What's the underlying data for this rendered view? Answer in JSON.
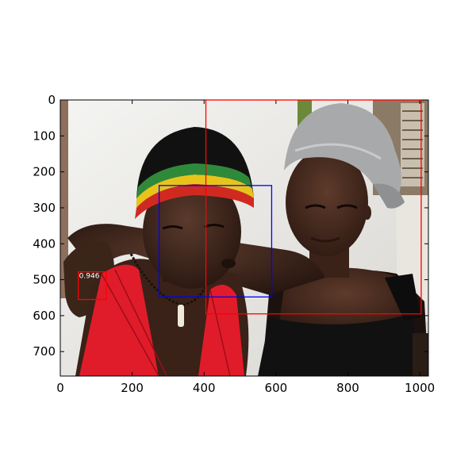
{
  "figure": {
    "image_description_icon": "photo-of-two-people",
    "x_ticks": [
      0,
      200,
      400,
      600,
      800,
      1000
    ],
    "y_ticks": [
      0,
      100,
      200,
      300,
      400,
      500,
      600,
      700
    ],
    "x_range": [
      0,
      1024
    ],
    "y_range": [
      768,
      0
    ]
  },
  "detections": [
    {
      "color": "#ff0000",
      "x1": 405,
      "y1": 0,
      "x2": 1004,
      "y2": 595,
      "score": ""
    },
    {
      "color": "#0000ff",
      "x1": 275,
      "y1": 238,
      "x2": 588,
      "y2": 548,
      "score": ""
    },
    {
      "color": "#ff0000",
      "x1": 50,
      "y1": 478,
      "x2": 128,
      "y2": 555,
      "score": "0.946"
    }
  ]
}
